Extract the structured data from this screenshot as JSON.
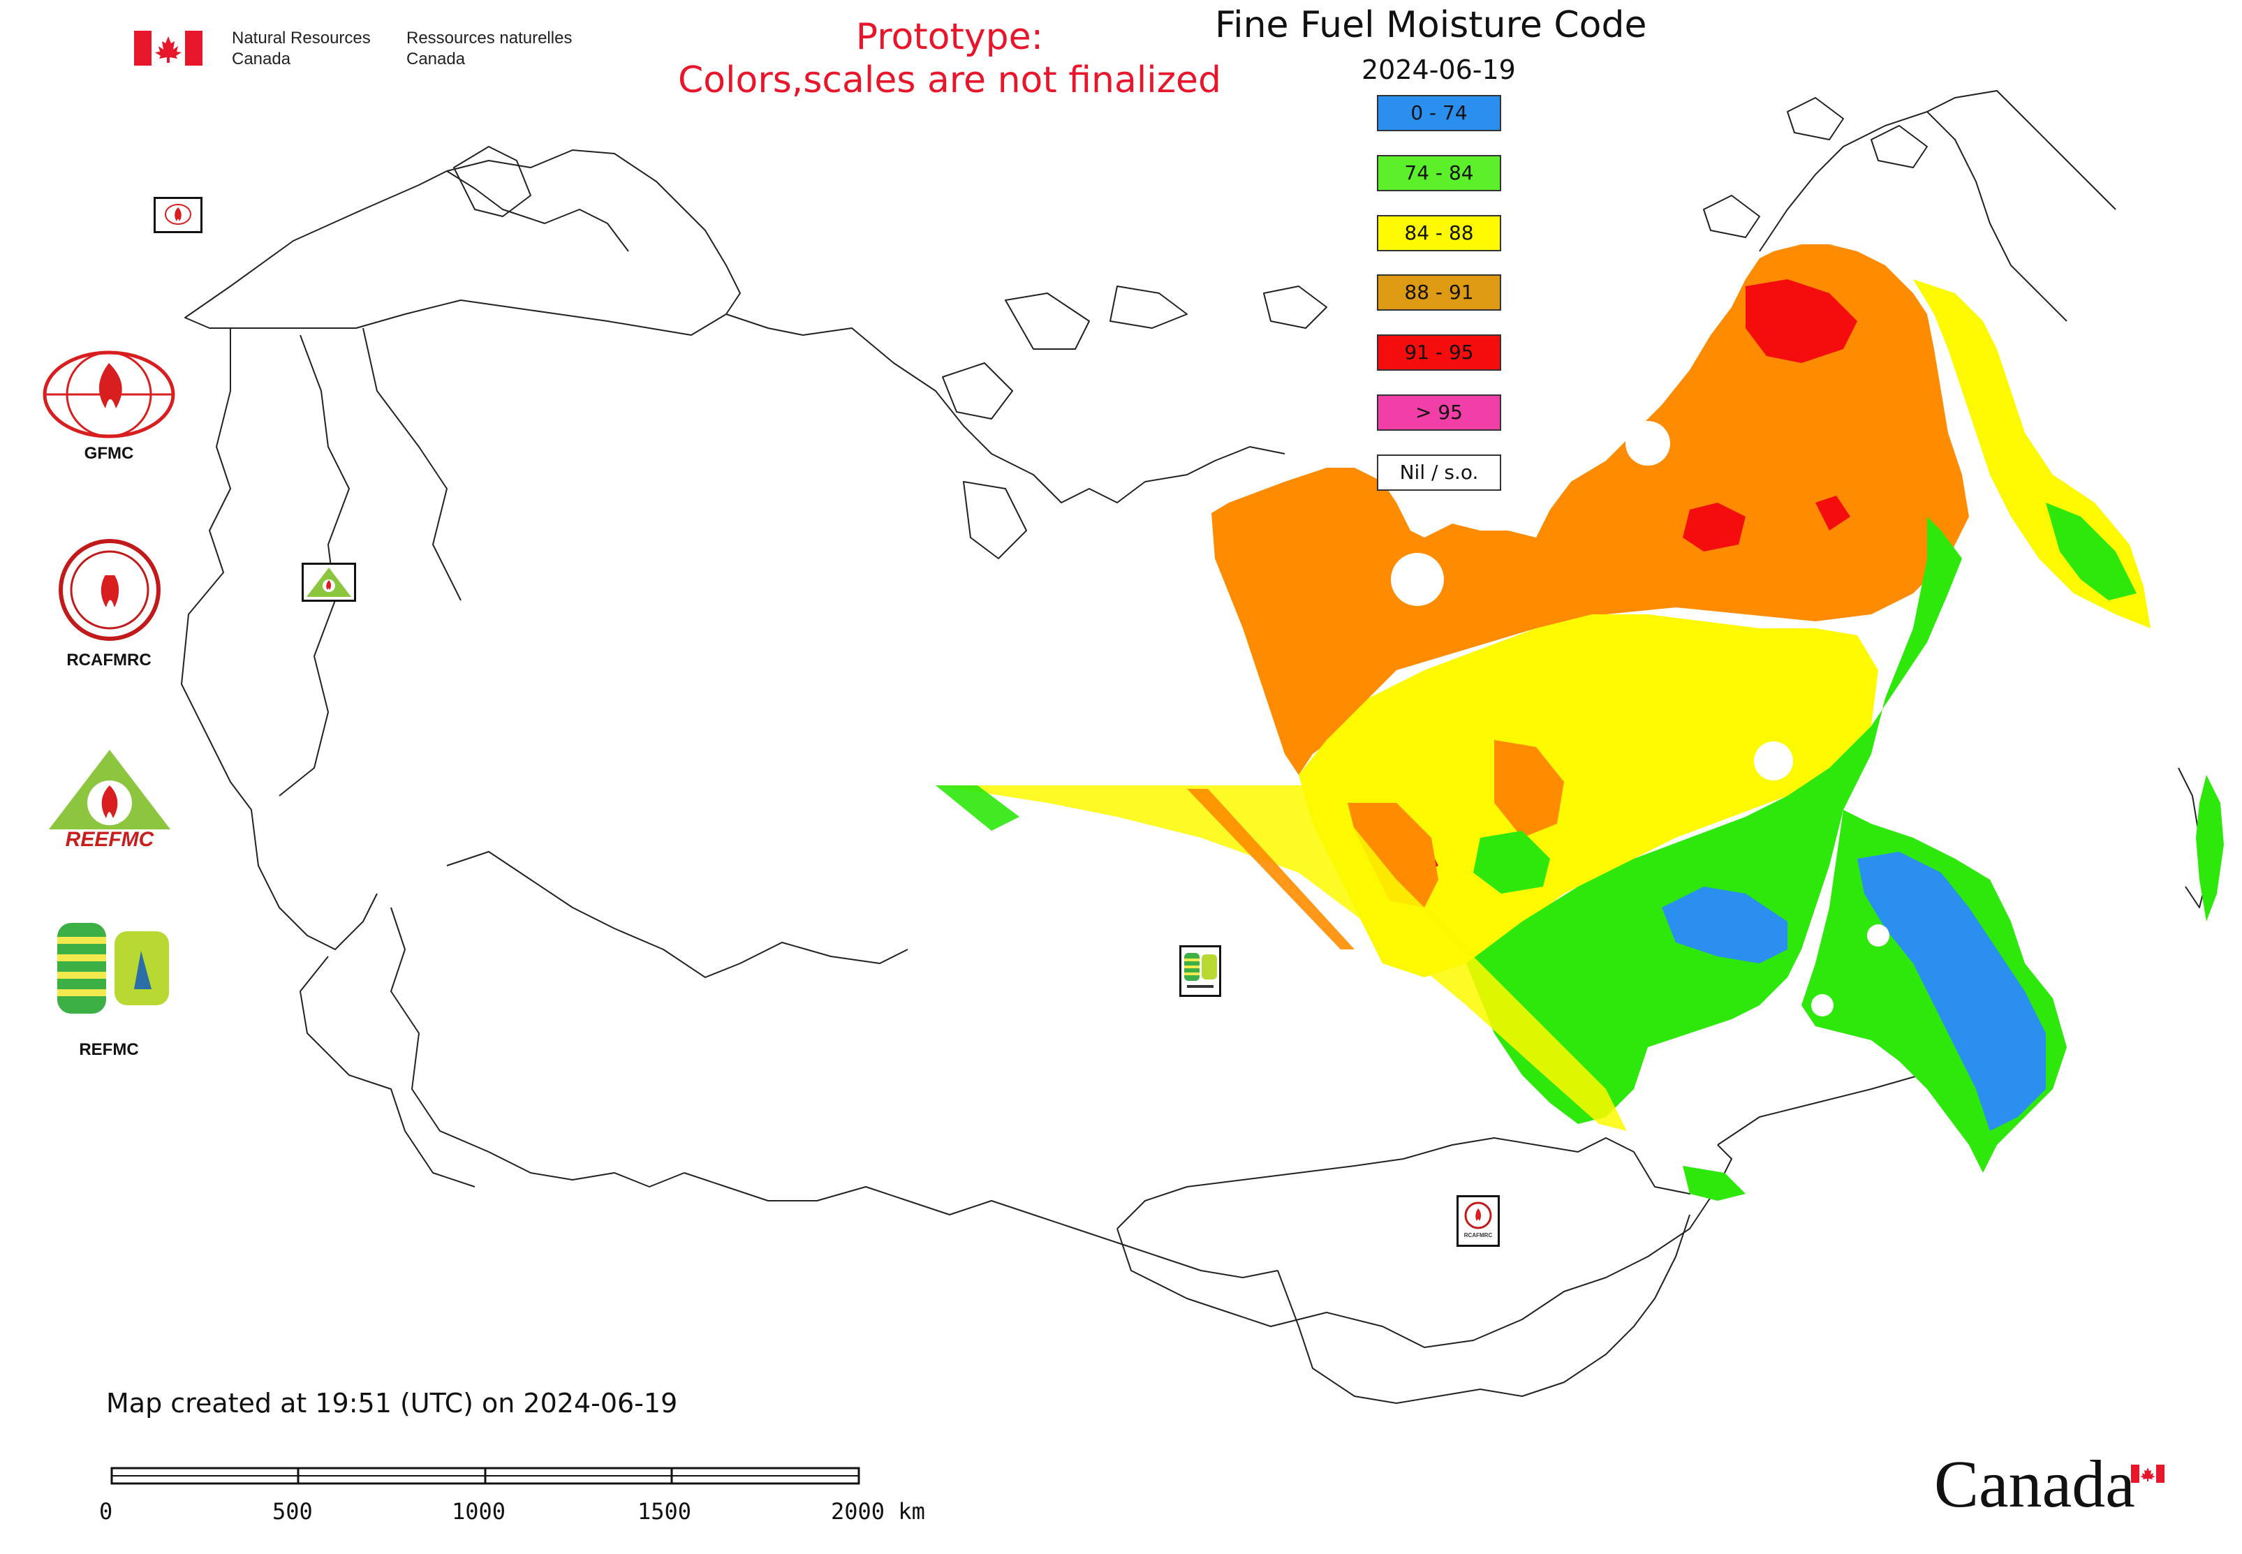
{
  "header": {
    "org_en_line1": "Natural Resources",
    "org_en_line2": "Canada",
    "org_fr_line1": "Ressources naturelles",
    "org_fr_line2": "Canada",
    "prototype_line1": "Prototype:",
    "prototype_line2": "Colors,scales are not finalized"
  },
  "map": {
    "title": "Fine Fuel Moisture Code",
    "date": "2024-06-19"
  },
  "legend": {
    "items": [
      {
        "label": "0 - 74",
        "color": "#2b8ff0"
      },
      {
        "label": "74 - 84",
        "color": "#5cf02a"
      },
      {
        "label": "84 - 88",
        "color": "#fdf900"
      },
      {
        "label": "88 - 91",
        "color": "#dd9a12"
      },
      {
        "label": "91 - 95",
        "color": "#f50d0d"
      },
      {
        "label": "> 95",
        "color": "#f23fa8"
      },
      {
        "label": "Nil / s.o.",
        "color": "#ffffff"
      }
    ]
  },
  "logos": {
    "gfmc": "GFMC",
    "rcafmrc": "RCAFMRC",
    "reefmc": "REEFMC",
    "refmc": "REFMC",
    "rcafmrc_badge_text": "RCAFMRC"
  },
  "footer": {
    "created": "Map created at 19:51 (UTC) on 2024-06-19"
  },
  "scale_bar": {
    "ticks": [
      "0",
      "500",
      "1000",
      "1500",
      "2000 km"
    ]
  },
  "wordmark": "Canada",
  "colors": {
    "fill_orange": "#ff8c00",
    "fill_yellow": "#fdf900",
    "fill_green": "#2ee80c",
    "fill_blue": "#2b8ff0",
    "fill_red": "#f50d0d",
    "prototype_red": "#e8162b"
  }
}
